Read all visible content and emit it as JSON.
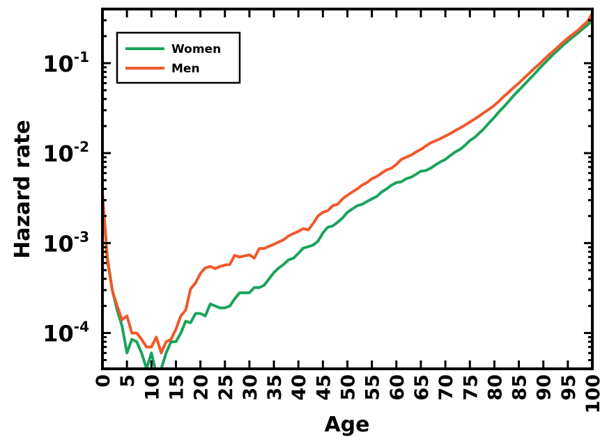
{
  "chart_data": {
    "type": "line",
    "title": "",
    "xlabel": "Age",
    "ylabel": "Hazard rate",
    "xlim": [
      0,
      100
    ],
    "ylim": [
      4e-05,
      0.4
    ],
    "yscale": "log",
    "grid": false,
    "legend_position": "top-left",
    "x_ticks": [
      "0",
      "5",
      "10",
      "15",
      "20",
      "25",
      "30",
      "35",
      "40",
      "45",
      "50",
      "55",
      "60",
      "65",
      "70",
      "75",
      "80",
      "85",
      "90",
      "95",
      "100"
    ],
    "y_ticks": [
      {
        "base": "10",
        "exp": "-4",
        "value": 0.0001
      },
      {
        "base": "10",
        "exp": "-3",
        "value": 0.001
      },
      {
        "base": "10",
        "exp": "-2",
        "value": 0.01
      },
      {
        "base": "10",
        "exp": "-1",
        "value": 0.1
      }
    ],
    "series": [
      {
        "name": "Women",
        "color": "#1aa35a",
        "points": [
          [
            0,
            0.0033
          ],
          [
            1,
            0.0007
          ],
          [
            2,
            0.0003
          ],
          [
            3,
            0.00018
          ],
          [
            4,
            0.00012
          ],
          [
            5,
            6e-05
          ],
          [
            6,
            8.5e-05
          ],
          [
            7,
            8e-05
          ],
          [
            8,
            6e-05
          ],
          [
            9,
            4e-05
          ],
          [
            10,
            6e-05
          ],
          [
            11,
            3.5e-05
          ],
          [
            12,
            4e-05
          ],
          [
            13,
            6e-05
          ],
          [
            14,
            8e-05
          ],
          [
            15,
            8e-05
          ],
          [
            16,
            0.0001
          ],
          [
            17,
            0.000135
          ],
          [
            18,
            0.00013
          ],
          [
            19,
            0.000165
          ],
          [
            20,
            0.000165
          ],
          [
            21,
            0.000155
          ],
          [
            22,
            0.00021
          ],
          [
            23,
            0.0002
          ],
          [
            24,
            0.00019
          ],
          [
            25,
            0.00019
          ],
          [
            26,
            0.0002
          ],
          [
            27,
            0.00024
          ],
          [
            28,
            0.00028
          ],
          [
            29,
            0.00028
          ],
          [
            30,
            0.00028
          ],
          [
            31,
            0.00032
          ],
          [
            32,
            0.00032
          ],
          [
            33,
            0.00034
          ],
          [
            34,
            0.0004
          ],
          [
            35,
            0.00047
          ],
          [
            36,
            0.00053
          ],
          [
            37,
            0.00058
          ],
          [
            38,
            0.00065
          ],
          [
            39,
            0.00068
          ],
          [
            40,
            0.00077
          ],
          [
            41,
            0.00088
          ],
          [
            42,
            0.00091
          ],
          [
            43,
            0.00095
          ],
          [
            44,
            0.00105
          ],
          [
            45,
            0.0013
          ],
          [
            46,
            0.0015
          ],
          [
            47,
            0.00155
          ],
          [
            48,
            0.0017
          ],
          [
            49,
            0.0019
          ],
          [
            50,
            0.0022
          ],
          [
            51,
            0.0024
          ],
          [
            52,
            0.0026
          ],
          [
            53,
            0.0027
          ],
          [
            54,
            0.0029
          ],
          [
            55,
            0.0031
          ],
          [
            56,
            0.0033
          ],
          [
            57,
            0.0037
          ],
          [
            58,
            0.004
          ],
          [
            59,
            0.0044
          ],
          [
            60,
            0.0047
          ],
          [
            61,
            0.0048
          ],
          [
            62,
            0.0052
          ],
          [
            63,
            0.0054
          ],
          [
            64,
            0.0058
          ],
          [
            65,
            0.0063
          ],
          [
            66,
            0.0064
          ],
          [
            67,
            0.0068
          ],
          [
            68,
            0.0074
          ],
          [
            69,
            0.008
          ],
          [
            70,
            0.0085
          ],
          [
            71,
            0.0094
          ],
          [
            72,
            0.0103
          ],
          [
            73,
            0.011
          ],
          [
            74,
            0.0122
          ],
          [
            75,
            0.0138
          ],
          [
            76,
            0.015
          ],
          [
            77,
            0.0168
          ],
          [
            78,
            0.019
          ],
          [
            79,
            0.022
          ],
          [
            80,
            0.025
          ],
          [
            81,
            0.029
          ],
          [
            82,
            0.033
          ],
          [
            83,
            0.038
          ],
          [
            84,
            0.044
          ],
          [
            85,
            0.05
          ],
          [
            86,
            0.057
          ],
          [
            87,
            0.065
          ],
          [
            88,
            0.074
          ],
          [
            89,
            0.085
          ],
          [
            90,
            0.097
          ],
          [
            91,
            0.11
          ],
          [
            92,
            0.125
          ],
          [
            93,
            0.14
          ],
          [
            94,
            0.158
          ],
          [
            95,
            0.176
          ],
          [
            96,
            0.195
          ],
          [
            97,
            0.215
          ],
          [
            98,
            0.24
          ],
          [
            99,
            0.265
          ],
          [
            100,
            0.3
          ]
        ]
      },
      {
        "name": "Men",
        "color": "#f0582a",
        "points": [
          [
            0,
            0.0037
          ],
          [
            1,
            0.00065
          ],
          [
            2,
            0.0003
          ],
          [
            3,
            0.0002
          ],
          [
            4,
            0.00014
          ],
          [
            5,
            0.000155
          ],
          [
            6,
            0.0001
          ],
          [
            7,
            0.0001
          ],
          [
            8,
            8.5e-05
          ],
          [
            9,
            7e-05
          ],
          [
            10,
            7e-05
          ],
          [
            11,
            9e-05
          ],
          [
            12,
            6e-05
          ],
          [
            13,
            8e-05
          ],
          [
            14,
            8.5e-05
          ],
          [
            15,
            0.00011
          ],
          [
            16,
            0.000155
          ],
          [
            17,
            0.00018
          ],
          [
            18,
            0.00031
          ],
          [
            19,
            0.00036
          ],
          [
            20,
            0.00046
          ],
          [
            21,
            0.00053
          ],
          [
            22,
            0.00055
          ],
          [
            23,
            0.00052
          ],
          [
            24,
            0.00055
          ],
          [
            25,
            0.00057
          ],
          [
            26,
            0.00058
          ],
          [
            27,
            0.00073
          ],
          [
            28,
            0.0007
          ],
          [
            29,
            0.00072
          ],
          [
            30,
            0.00074
          ],
          [
            31,
            0.00068
          ],
          [
            32,
            0.00087
          ],
          [
            33,
            0.00087
          ],
          [
            34,
            0.00092
          ],
          [
            35,
            0.00097
          ],
          [
            36,
            0.00103
          ],
          [
            37,
            0.00109
          ],
          [
            38,
            0.0012
          ],
          [
            39,
            0.00128
          ],
          [
            40,
            0.00135
          ],
          [
            41,
            0.00145
          ],
          [
            42,
            0.0014
          ],
          [
            43,
            0.00165
          ],
          [
            44,
            0.002
          ],
          [
            45,
            0.0022
          ],
          [
            46,
            0.0023
          ],
          [
            47,
            0.0026
          ],
          [
            48,
            0.0027
          ],
          [
            49,
            0.0031
          ],
          [
            50,
            0.0034
          ],
          [
            51,
            0.0037
          ],
          [
            52,
            0.004
          ],
          [
            53,
            0.0044
          ],
          [
            54,
            0.0047
          ],
          [
            55,
            0.0052
          ],
          [
            56,
            0.0055
          ],
          [
            57,
            0.006
          ],
          [
            58,
            0.0065
          ],
          [
            59,
            0.0068
          ],
          [
            60,
            0.0075
          ],
          [
            61,
            0.0085
          ],
          [
            62,
            0.009
          ],
          [
            63,
            0.0095
          ],
          [
            64,
            0.0103
          ],
          [
            65,
            0.011
          ],
          [
            66,
            0.012
          ],
          [
            67,
            0.013
          ],
          [
            68,
            0.0137
          ],
          [
            69,
            0.0145
          ],
          [
            70,
            0.0155
          ],
          [
            71,
            0.0165
          ],
          [
            72,
            0.0178
          ],
          [
            73,
            0.019
          ],
          [
            74,
            0.0205
          ],
          [
            75,
            0.0222
          ],
          [
            76,
            0.024
          ],
          [
            77,
            0.026
          ],
          [
            78,
            0.0285
          ],
          [
            79,
            0.031
          ],
          [
            80,
            0.034
          ],
          [
            81,
            0.038
          ],
          [
            82,
            0.043
          ],
          [
            83,
            0.048
          ],
          [
            84,
            0.054
          ],
          [
            85,
            0.06
          ],
          [
            86,
            0.068
          ],
          [
            87,
            0.076
          ],
          [
            88,
            0.086
          ],
          [
            89,
            0.096
          ],
          [
            90,
            0.108
          ],
          [
            91,
            0.122
          ],
          [
            92,
            0.136
          ],
          [
            93,
            0.152
          ],
          [
            94,
            0.17
          ],
          [
            95,
            0.19
          ],
          [
            96,
            0.21
          ],
          [
            97,
            0.23
          ],
          [
            98,
            0.26
          ],
          [
            99,
            0.29
          ],
          [
            100,
            0.36
          ]
        ]
      }
    ]
  }
}
